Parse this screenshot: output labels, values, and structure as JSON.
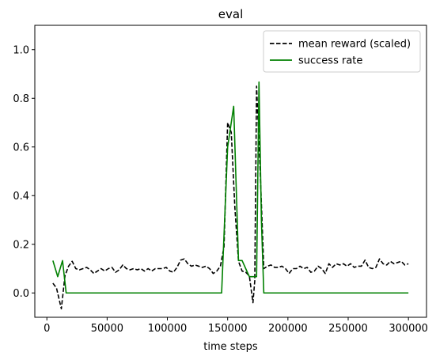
{
  "chart_data": {
    "type": "line",
    "title": "eval",
    "xlabel": "time steps",
    "ylabel": "",
    "xlim": [
      -10000,
      315000
    ],
    "ylim": [
      -0.1,
      1.1
    ],
    "xticks": [
      0,
      50000,
      100000,
      150000,
      200000,
      250000,
      300000
    ],
    "xtick_labels": [
      "0",
      "50000",
      "100000",
      "150000",
      "200000",
      "250000",
      "300000"
    ],
    "yticks": [
      0.0,
      0.2,
      0.4,
      0.6,
      0.8,
      1.0
    ],
    "ytick_labels": [
      "0.0",
      "0.2",
      "0.4",
      "0.6",
      "0.8",
      "1.0"
    ],
    "grid": false,
    "legend_position": "top-right",
    "series": [
      {
        "name": "mean reward (scaled)",
        "color": "#000000",
        "dash": "dashed",
        "x": [
          5000,
          8000,
          12000,
          15000,
          18000,
          21000,
          24000,
          27000,
          30000,
          33000,
          36000,
          39000,
          42000,
          45000,
          48000,
          51000,
          54000,
          57000,
          60000,
          63000,
          66000,
          69000,
          72000,
          75000,
          78000,
          81000,
          84000,
          87000,
          90000,
          93000,
          96000,
          99000,
          102000,
          105000,
          108000,
          111000,
          114000,
          117000,
          120000,
          123000,
          126000,
          129000,
          132000,
          135000,
          138000,
          141000,
          144000,
          147000,
          150000,
          153000,
          156000,
          159000,
          162000,
          165000,
          168000,
          171000,
          172500,
          174000,
          177000,
          180000,
          183000,
          186000,
          189000,
          192000,
          195000,
          198000,
          201000,
          204000,
          207000,
          210000,
          213000,
          216000,
          219000,
          222000,
          225000,
          228000,
          231000,
          234000,
          237000,
          240000,
          243000,
          246000,
          249000,
          252000,
          255000,
          258000,
          261000,
          264000,
          267000,
          270000,
          273000,
          276000,
          279000,
          282000,
          285000,
          288000,
          291000,
          294000,
          297000,
          300000
        ],
        "values": [
          0.04,
          0.02,
          -0.065,
          0.07,
          0.11,
          0.13,
          0.1,
          0.095,
          0.1,
          0.105,
          0.095,
          0.08,
          0.09,
          0.1,
          0.09,
          0.1,
          0.105,
          0.085,
          0.095,
          0.115,
          0.1,
          0.095,
          0.1,
          0.095,
          0.1,
          0.09,
          0.1,
          0.09,
          0.1,
          0.1,
          0.1,
          0.105,
          0.09,
          0.085,
          0.105,
          0.135,
          0.14,
          0.12,
          0.11,
          0.115,
          0.11,
          0.105,
          0.11,
          0.1,
          0.08,
          0.09,
          0.11,
          0.19,
          0.7,
          0.66,
          0.35,
          0.13,
          0.09,
          0.085,
          0.07,
          -0.04,
          0.05,
          0.85,
          0.5,
          0.1,
          0.11,
          0.115,
          0.105,
          0.105,
          0.11,
          0.1,
          0.08,
          0.1,
          0.1,
          0.11,
          0.1,
          0.105,
          0.085,
          0.09,
          0.11,
          0.1,
          0.08,
          0.12,
          0.105,
          0.12,
          0.115,
          0.12,
          0.11,
          0.12,
          0.105,
          0.11,
          0.11,
          0.135,
          0.105,
          0.1,
          0.105,
          0.14,
          0.12,
          0.115,
          0.13,
          0.12,
          0.125,
          0.13,
          0.115,
          0.12
        ]
      },
      {
        "name": "success rate",
        "color": "#008000",
        "dash": "solid",
        "x": [
          5000,
          9000,
          13000,
          16000,
          20000,
          145000,
          150000,
          155000,
          159000,
          162000,
          165000,
          168000,
          171000,
          174000,
          176000,
          178000,
          180000,
          300000
        ],
        "values": [
          0.133,
          0.067,
          0.133,
          0.0,
          0.0,
          0.0,
          0.6,
          0.767,
          0.133,
          0.133,
          0.1,
          0.067,
          0.067,
          0.067,
          0.867,
          0.3,
          0.0,
          0.0
        ]
      }
    ]
  }
}
